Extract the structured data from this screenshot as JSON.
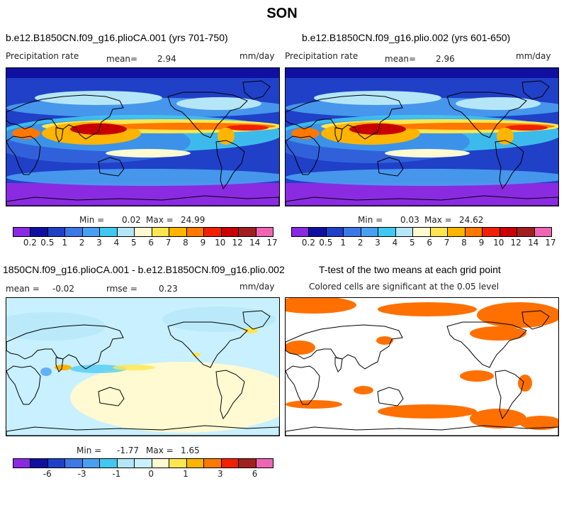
{
  "title": "SON",
  "panels": {
    "p1": {
      "case": "b.e12.B1850CN.f09_g16.plioCA.001 (yrs 701-750)",
      "var": "Precipitation rate",
      "mean_label": "mean=",
      "mean": "2.94",
      "units": "mm/day",
      "min_label": "Min =",
      "min": "0.02",
      "max_label": "Max =",
      "max": "24.99"
    },
    "p2": {
      "case": "b.e12.B1850CN.f09_g16.plio.002 (yrs 601-650)",
      "var": "Precipitation rate",
      "mean_label": "mean=",
      "mean": "2.96",
      "units": "mm/day",
      "min_label": "Min =",
      "min": "0.03",
      "max_label": "Max =",
      "max": "24.62"
    },
    "p3": {
      "case": "1850CN.f09_g16.plioCA.001 - b.e12.B1850CN.f09_g16.plio.002",
      "mean_label": "mean =",
      "mean": "-0.02",
      "rmse_label": "rmse =",
      "rmse": "0.23",
      "units": "mm/day",
      "min_label": "Min =",
      "min": "-1.77",
      "max_label": "Max =",
      "max": "1.65"
    },
    "p4": {
      "title": "T-test of the two means at each grid point",
      "subtitle": "Colored cells are significant at the 0.05 level"
    }
  },
  "colorbar_abs": {
    "colors": [
      "#8a2be2",
      "#1010a0",
      "#2040c8",
      "#3c78e6",
      "#4aa0f0",
      "#40c8f0",
      "#b4e6f8",
      "#fffad2",
      "#ffe650",
      "#ffb400",
      "#ff7800",
      "#f02000",
      "#c80000",
      "#a02020",
      "#f064b4"
    ],
    "labels": [
      "0.2",
      "0.5",
      "1",
      "2",
      "3",
      "4",
      "5",
      "6",
      "7",
      "8",
      "9",
      "10",
      "12",
      "14",
      "17"
    ]
  },
  "colorbar_diff": {
    "colors": [
      "#8a2be2",
      "#1010a0",
      "#2040c8",
      "#3c78e6",
      "#4aa0f0",
      "#40c8f0",
      "#b4e6f8",
      "#c8f0ff",
      "#fffad2",
      "#ffe650",
      "#ffb400",
      "#ff7800",
      "#f02000",
      "#a02020",
      "#f064b4"
    ],
    "labels": [
      "-6",
      "-3",
      "-1",
      "0",
      "1",
      "3",
      "6"
    ]
  },
  "colors": {
    "significant": "#ff7000",
    "coast": "#000000"
  }
}
